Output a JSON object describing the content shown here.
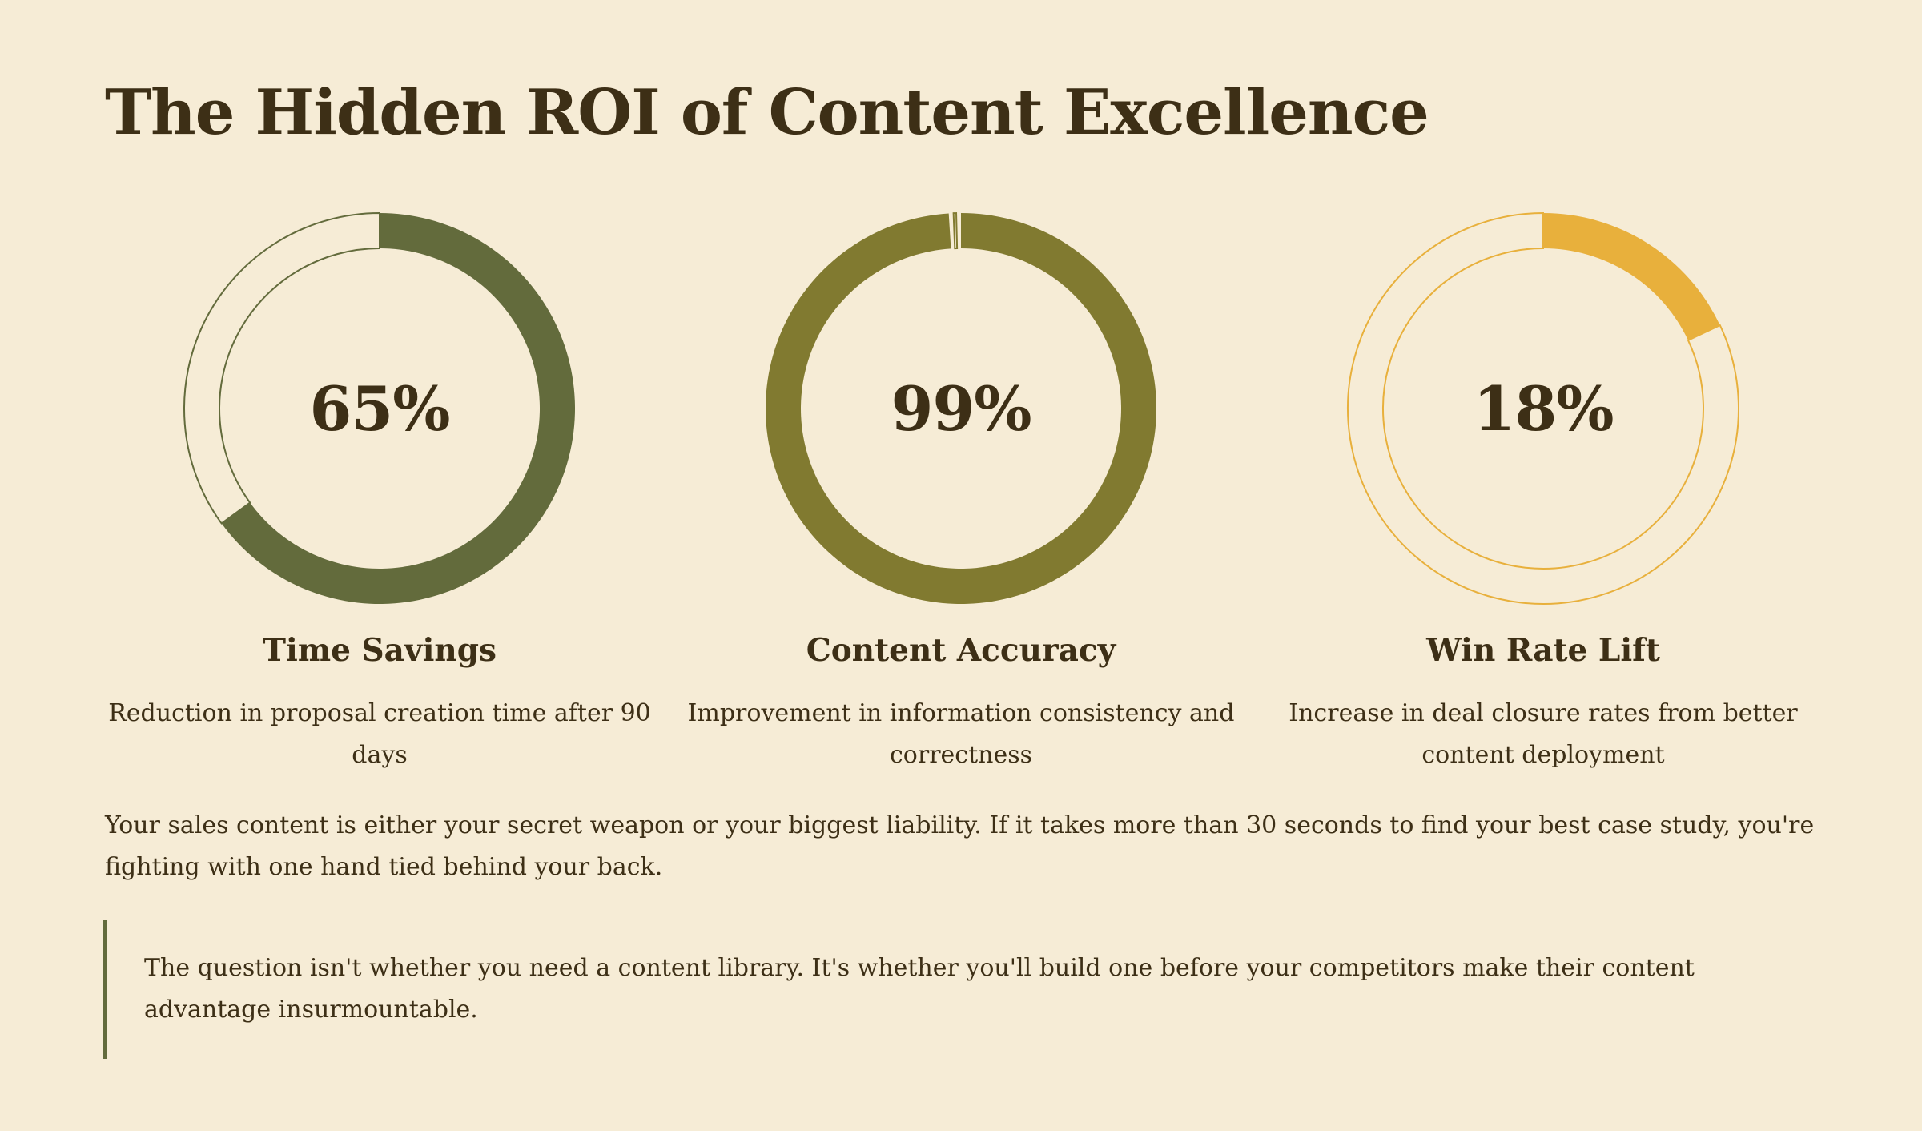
{
  "title": "The Hidden ROI of Content Excellence",
  "stats": [
    {
      "value": "65%",
      "fraction": 0.65,
      "label": "Time Savings",
      "description": "Reduction in proposal creation time after 90 days",
      "color": "#636b3c"
    },
    {
      "value": "99%",
      "fraction": 0.99,
      "label": "Content Accuracy",
      "description": "Improvement in information consistency and correctness",
      "color": "#817a30"
    },
    {
      "value": "18%",
      "fraction": 0.18,
      "label": "Win Rate Lift",
      "description": "Increase in deal closure rates from better content deployment",
      "color": "#e8b03c"
    }
  ],
  "body_text": "Your sales content is either your secret weapon or your biggest liability. If it takes more than 30 seconds to find your best case study, you're fighting with one hand tied behind your back.",
  "quote": "The question isn't whether you need a content library. It's whether you'll build one before your competitors make their content advantage insurmountable."
}
